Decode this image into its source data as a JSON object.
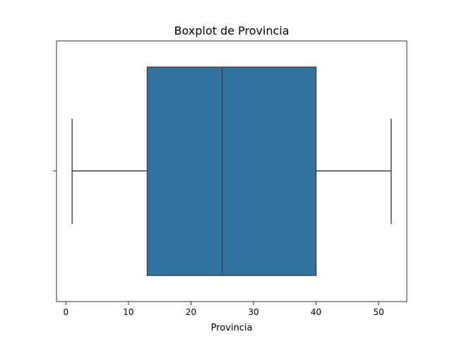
{
  "chart_data": {
    "type": "boxplot",
    "title": "Boxplot de Provincia",
    "xlabel": "Provincia",
    "ylabel": "",
    "orientation": "horizontal",
    "xlim": [
      -1.5,
      54.5
    ],
    "xticks": [
      0,
      10,
      20,
      30,
      40,
      50
    ],
    "grid": false,
    "legend": "none",
    "series": [
      {
        "whisker_low": 1,
        "q1": 13,
        "median": 25,
        "q3": 40,
        "whisker_high": 52
      }
    ],
    "colors": {
      "box_fill": "#3274a1",
      "line": "#3f3f3f",
      "axis": "#000000"
    }
  }
}
